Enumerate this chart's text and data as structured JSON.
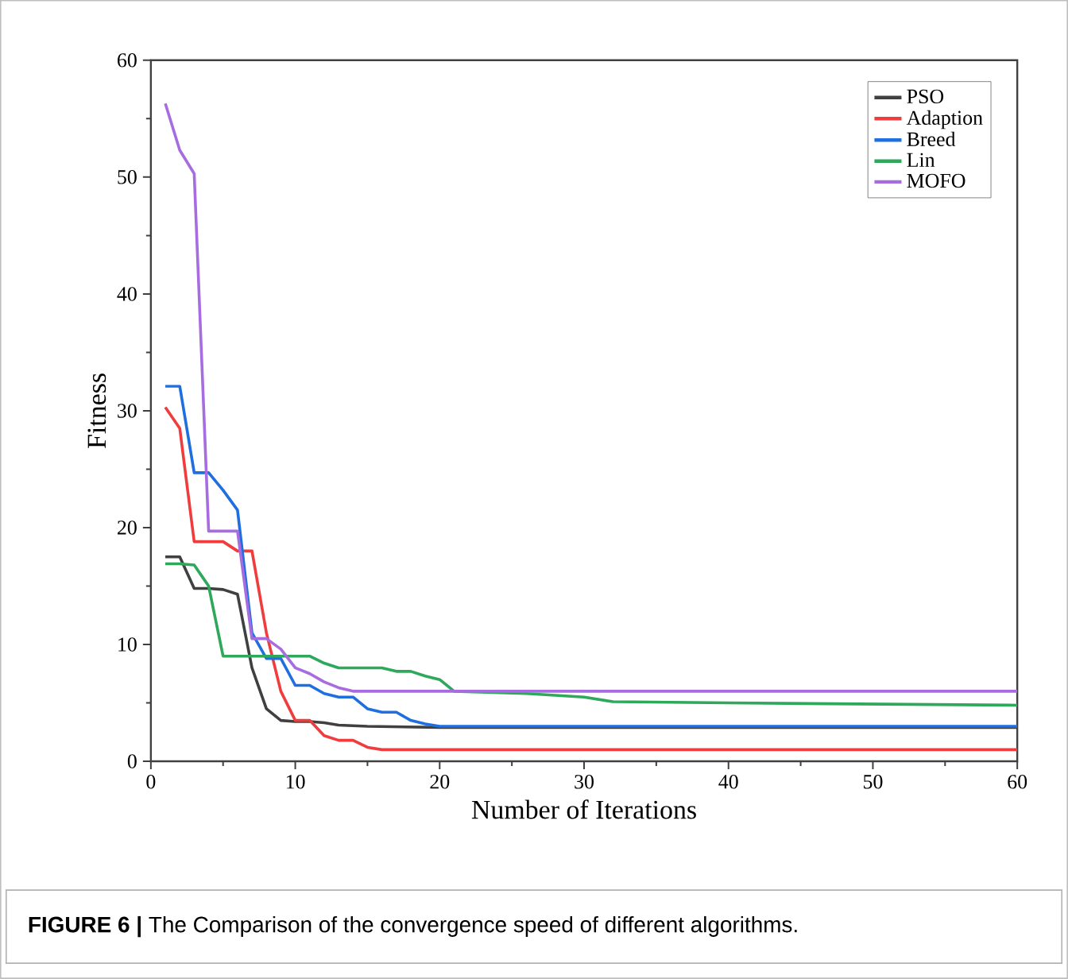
{
  "chart_data": {
    "type": "line",
    "xlabel": "Number of Iterations",
    "ylabel": "Fitness",
    "xlim": [
      0,
      60
    ],
    "ylim": [
      0,
      60
    ],
    "xticks": [
      0,
      10,
      20,
      30,
      40,
      50,
      60
    ],
    "yticks": [
      0,
      10,
      20,
      30,
      40,
      50,
      60
    ],
    "legend": "top right",
    "annotations": [
      "**FIGURE 6 |** The Comparison of the convergence speed of different algorithms."
    ],
    "series": [
      {
        "name": "PSO",
        "color": "#404040",
        "x": [
          1,
          2,
          3,
          4,
          5,
          6,
          7,
          8,
          9,
          10,
          11,
          12,
          13,
          15,
          20,
          60
        ],
        "values": [
          17.5,
          17.5,
          14.8,
          14.8,
          14.7,
          14.3,
          8,
          4.5,
          3.5,
          3.4,
          3.4,
          3.3,
          3.1,
          3.0,
          2.9,
          2.9
        ]
      },
      {
        "name": "Adaption",
        "color": "#f03c3c",
        "x": [
          1,
          2,
          3,
          4,
          5,
          6,
          7,
          8,
          9,
          10,
          11,
          12,
          13,
          14,
          15,
          16,
          60
        ],
        "values": [
          30.3,
          28.5,
          18.8,
          18.8,
          18.8,
          18,
          18,
          11,
          6,
          3.5,
          3.5,
          2.2,
          1.8,
          1.8,
          1.2,
          1.0,
          1.0
        ]
      },
      {
        "name": "Breed",
        "color": "#1f6fe0",
        "x": [
          1,
          2,
          3,
          4,
          5,
          6,
          7,
          8,
          9,
          10,
          11,
          12,
          13,
          14,
          15,
          16,
          17,
          18,
          19,
          20,
          26,
          60
        ],
        "values": [
          32.1,
          32.1,
          24.7,
          24.7,
          23.2,
          21.5,
          11,
          8.8,
          8.8,
          6.5,
          6.5,
          5.8,
          5.5,
          5.5,
          4.5,
          4.2,
          4.2,
          3.5,
          3.2,
          3.0,
          3.0,
          3.0
        ]
      },
      {
        "name": "Lin",
        "color": "#2ea85a",
        "x": [
          1,
          2,
          3,
          4,
          5,
          11,
          12,
          13,
          16,
          17,
          18,
          19,
          20,
          21,
          26,
          30,
          32,
          40,
          60
        ],
        "values": [
          16.9,
          16.9,
          16.8,
          15.0,
          9,
          9,
          8.4,
          8.0,
          8.0,
          7.7,
          7.7,
          7.3,
          7.0,
          6.0,
          5.8,
          5.5,
          5.1,
          5.0,
          4.8
        ]
      },
      {
        "name": "MOFO",
        "color": "#a66ce0",
        "x": [
          1,
          2,
          3,
          4,
          5,
          6,
          7,
          8,
          9,
          10,
          11,
          12,
          13,
          14,
          60
        ],
        "values": [
          56.3,
          52.3,
          50.3,
          19.7,
          19.7,
          19.7,
          10.5,
          10.5,
          9.6,
          8,
          7.5,
          6.8,
          6.3,
          6.0,
          6.0
        ]
      }
    ]
  }
}
